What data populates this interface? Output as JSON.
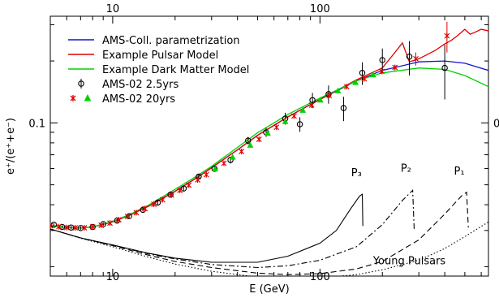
{
  "chart_data": {
    "type": "line",
    "title": "",
    "xlabel": "E (GeV)",
    "ylabel": "e⁺/(e⁺+e⁻)",
    "x_scale": "log",
    "y_scale": "log",
    "xlim": [
      5,
      650
    ],
    "ylim": [
      0.018,
      0.33
    ],
    "x_ticks": [
      10,
      100
    ],
    "y_ticks": [
      0.1
    ],
    "legend_position": "top-left",
    "legend": [
      {
        "label": "AMS-Coll. parametrization",
        "color": "#1414c8",
        "kind": "line"
      },
      {
        "label": "Example Pulsar Model",
        "color": "#e00000",
        "kind": "line"
      },
      {
        "label": "Example Dark Matter Model",
        "color": "#00d200",
        "kind": "line"
      },
      {
        "label": "AMS-02 2.5yrs",
        "color": "#000000",
        "kind": "circle-marker"
      },
      {
        "label": "AMS-02 20yrs",
        "color": "#e00000",
        "kind": "star-triangle-marker",
        "alt_color": "#00d200"
      }
    ],
    "annotations": [
      {
        "text": "P₃",
        "x": 150,
        "y": 0.055
      },
      {
        "text": "P₂",
        "x": 260,
        "y": 0.058
      },
      {
        "text": "P₁",
        "x": 470,
        "y": 0.056
      },
      {
        "text": "Young Pulsars",
        "x": 270,
        "y": 0.0205
      }
    ],
    "series": [
      {
        "name": "AMS-Coll. parametrization",
        "color": "#1414c8",
        "style": "solid",
        "x": [
          5,
          6,
          7,
          8,
          10,
          12,
          15,
          20,
          25,
          30,
          40,
          50,
          70,
          100,
          150,
          200,
          300,
          400,
          500,
          650
        ],
        "y": [
          0.0317,
          0.031,
          0.0308,
          0.0312,
          0.033,
          0.0355,
          0.0395,
          0.0465,
          0.0535,
          0.0605,
          0.074,
          0.087,
          0.107,
          0.13,
          0.16,
          0.18,
          0.198,
          0.2,
          0.195,
          0.18
        ]
      },
      {
        "name": "Example Pulsar Model",
        "color": "#e00000",
        "style": "solid",
        "x": [
          5,
          6,
          7,
          8,
          10,
          12,
          15,
          20,
          25,
          30,
          40,
          50,
          70,
          100,
          150,
          200,
          230,
          250,
          270,
          300,
          330,
          360,
          400,
          430,
          460,
          500,
          530,
          560,
          600,
          650
        ],
        "y": [
          0.0317,
          0.031,
          0.0308,
          0.0312,
          0.033,
          0.0355,
          0.0395,
          0.0465,
          0.0535,
          0.0605,
          0.074,
          0.087,
          0.107,
          0.13,
          0.162,
          0.185,
          0.22,
          0.245,
          0.198,
          0.205,
          0.215,
          0.225,
          0.242,
          0.252,
          0.265,
          0.285,
          0.27,
          0.276,
          0.285,
          0.28
        ]
      },
      {
        "name": "Example Dark Matter Model",
        "color": "#00d200",
        "style": "solid",
        "x": [
          5,
          6,
          7,
          8,
          10,
          12,
          15,
          20,
          25,
          30,
          40,
          50,
          70,
          100,
          150,
          200,
          300,
          400,
          500,
          650
        ],
        "y": [
          0.0317,
          0.031,
          0.0308,
          0.0312,
          0.0332,
          0.0358,
          0.04,
          0.0475,
          0.0545,
          0.0615,
          0.076,
          0.0895,
          0.11,
          0.132,
          0.16,
          0.175,
          0.185,
          0.182,
          0.17,
          0.15
        ]
      },
      {
        "name": "Pulsar P3",
        "color": "#000000",
        "style": "solid",
        "x": [
          5,
          7,
          10,
          15,
          20,
          30,
          50,
          70,
          100,
          120,
          140,
          155,
          160,
          161
        ],
        "y": [
          0.0305,
          0.0276,
          0.0255,
          0.0232,
          0.022,
          0.021,
          0.021,
          0.0225,
          0.026,
          0.03,
          0.038,
          0.044,
          0.045,
          0.0315
        ]
      },
      {
        "name": "Pulsar P2",
        "color": "#000000",
        "style": "dashdot",
        "x": [
          5,
          7,
          10,
          15,
          20,
          30,
          50,
          70,
          100,
          150,
          200,
          250,
          280,
          285
        ],
        "y": [
          0.0305,
          0.0276,
          0.0255,
          0.023,
          0.0218,
          0.0205,
          0.0198,
          0.0202,
          0.0215,
          0.025,
          0.032,
          0.042,
          0.047,
          0.03
        ]
      },
      {
        "name": "Pulsar P1",
        "color": "#000000",
        "style": "dashed",
        "x": [
          5,
          7,
          10,
          15,
          20,
          30,
          50,
          70,
          100,
          150,
          200,
          300,
          400,
          480,
          510,
          520
        ],
        "y": [
          0.0305,
          0.0276,
          0.0253,
          0.0227,
          0.0212,
          0.0198,
          0.0186,
          0.0183,
          0.0185,
          0.0195,
          0.0212,
          0.027,
          0.036,
          0.044,
          0.046,
          0.031
        ]
      },
      {
        "name": "Young Pulsars",
        "color": "#000000",
        "style": "dotted",
        "x": [
          5,
          7,
          10,
          15,
          20,
          30,
          50,
          70,
          100,
          150,
          200,
          300,
          400,
          500,
          650
        ],
        "y": [
          0.0305,
          0.0275,
          0.025,
          0.0222,
          0.0206,
          0.019,
          0.0178,
          0.0175,
          0.0176,
          0.0183,
          0.0193,
          0.0215,
          0.0245,
          0.028,
          0.033
        ]
      }
    ],
    "scatter_series": [
      {
        "name": "AMS-02 2.5yrs",
        "color": "#000000",
        "marker": "circle",
        "points": [
          {
            "x": 5.2,
            "y": 0.032,
            "err": 0.0006
          },
          {
            "x": 5.7,
            "y": 0.0312,
            "err": 0.0006
          },
          {
            "x": 6.3,
            "y": 0.031,
            "err": 0.0006
          },
          {
            "x": 7.0,
            "y": 0.0308,
            "err": 0.0006
          },
          {
            "x": 8.0,
            "y": 0.0312,
            "err": 0.0006
          },
          {
            "x": 9.0,
            "y": 0.0322,
            "err": 0.0006
          },
          {
            "x": 10.5,
            "y": 0.0335,
            "err": 0.0007
          },
          {
            "x": 12,
            "y": 0.0352,
            "err": 0.0007
          },
          {
            "x": 14,
            "y": 0.0378,
            "err": 0.0008
          },
          {
            "x": 16.5,
            "y": 0.041,
            "err": 0.0009
          },
          {
            "x": 19,
            "y": 0.0448,
            "err": 0.001
          },
          {
            "x": 22,
            "y": 0.048,
            "err": 0.0011
          },
          {
            "x": 26,
            "y": 0.0548,
            "err": 0.0015
          },
          {
            "x": 31,
            "y": 0.0598,
            "err": 0.0018
          },
          {
            "x": 37,
            "y": 0.066,
            "err": 0.0025
          },
          {
            "x": 45,
            "y": 0.082,
            "err": 0.0035
          },
          {
            "x": 55,
            "y": 0.09,
            "err": 0.0045
          },
          {
            "x": 68,
            "y": 0.105,
            "err": 0.007
          },
          {
            "x": 80,
            "y": 0.0985,
            "err": 0.008
          },
          {
            "x": 92,
            "y": 0.129,
            "err": 0.011
          },
          {
            "x": 110,
            "y": 0.138,
            "err": 0.014
          },
          {
            "x": 130,
            "y": 0.118,
            "err": 0.016
          },
          {
            "x": 160,
            "y": 0.175,
            "err": 0.022
          },
          {
            "x": 200,
            "y": 0.202,
            "err": 0.028
          },
          {
            "x": 270,
            "y": 0.21,
            "err": 0.04
          },
          {
            "x": 400,
            "y": 0.185,
            "err": 0.055
          }
        ]
      },
      {
        "name": "AMS-02 20yrs",
        "color": "#e00000",
        "alt_color": "#00d200",
        "marker": "star-triangle",
        "points": [
          {
            "x": 5.0,
            "y": 0.0316
          },
          {
            "x": 5.5,
            "y": 0.0313
          },
          {
            "x": 6.0,
            "y": 0.031
          },
          {
            "x": 6.6,
            "y": 0.0309
          },
          {
            "x": 7.3,
            "y": 0.0309
          },
          {
            "x": 8.0,
            "y": 0.0312
          },
          {
            "x": 8.8,
            "y": 0.0318
          },
          {
            "x": 9.7,
            "y": 0.0326
          },
          {
            "x": 10.7,
            "y": 0.0338
          },
          {
            "x": 11.8,
            "y": 0.0351
          },
          {
            "x": 13.0,
            "y": 0.0366
          },
          {
            "x": 14.3,
            "y": 0.0383
          },
          {
            "x": 15.8,
            "y": 0.0402
          },
          {
            "x": 17.4,
            "y": 0.0423
          },
          {
            "x": 19.2,
            "y": 0.0446
          },
          {
            "x": 21.1,
            "y": 0.047
          },
          {
            "x": 23.3,
            "y": 0.0498
          },
          {
            "x": 25.7,
            "y": 0.0528
          },
          {
            "x": 28.3,
            "y": 0.056
          },
          {
            "x": 31.2,
            "y": 0.0596
          },
          {
            "x": 34.4,
            "y": 0.0636
          },
          {
            "x": 37.9,
            "y": 0.068
          },
          {
            "x": 41.8,
            "y": 0.0726
          },
          {
            "x": 46.1,
            "y": 0.0778
          },
          {
            "x": 50.8,
            "y": 0.0832
          },
          {
            "x": 56.0,
            "y": 0.089
          },
          {
            "x": 61.7,
            "y": 0.0952
          },
          {
            "x": 68.0,
            "y": 0.1015
          },
          {
            "x": 75.0,
            "y": 0.108
          },
          {
            "x": 82.7,
            "y": 0.115
          },
          {
            "x": 91.2,
            "y": 0.122
          },
          {
            "x": 100.5,
            "y": 0.129
          },
          {
            "x": 110.8,
            "y": 0.136
          },
          {
            "x": 122.1,
            "y": 0.143
          },
          {
            "x": 134.6,
            "y": 0.15
          },
          {
            "x": 148.4,
            "y": 0.157
          },
          {
            "x": 163.6,
            "y": 0.164
          },
          {
            "x": 180.4,
            "y": 0.171
          },
          {
            "x": 198.9,
            "y": 0.178
          },
          {
            "x": 230,
            "y": 0.186
          },
          {
            "x": 290,
            "y": 0.205,
            "err": 0.015
          },
          {
            "x": 410,
            "y": 0.265,
            "err": 0.045
          }
        ]
      }
    ]
  }
}
